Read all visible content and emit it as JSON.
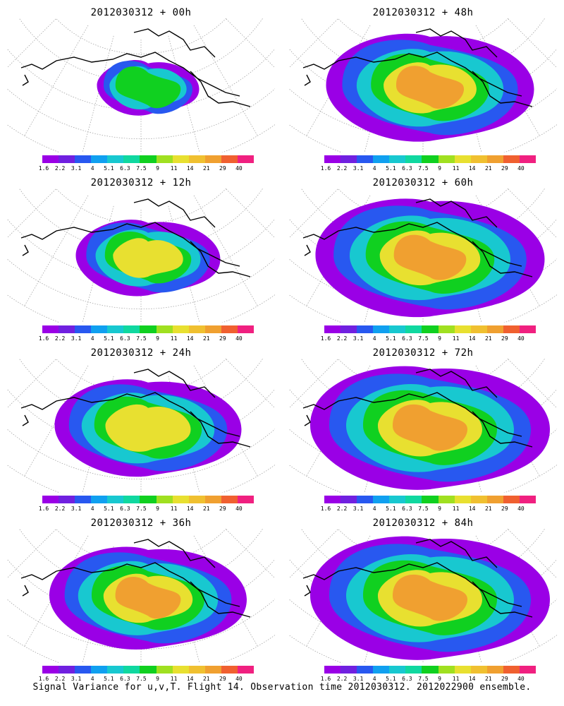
{
  "figure": {
    "caption": "Signal Variance for u,v,T. Flight 14. Observation time 2012030312. 2012022900 ensemble.",
    "panels": [
      {
        "title": "2012030312 + 00h",
        "coverage": 0.35,
        "peak": "green"
      },
      {
        "title": "2012030312 + 48h",
        "coverage": 0.85,
        "peak": "orange"
      },
      {
        "title": "2012030312 + 12h",
        "coverage": 0.55,
        "peak": "yellow"
      },
      {
        "title": "2012030312 + 60h",
        "coverage": 0.95,
        "peak": "orange"
      },
      {
        "title": "2012030312 + 24h",
        "coverage": 0.75,
        "peak": "yellow"
      },
      {
        "title": "2012030312 + 72h",
        "coverage": 1.0,
        "peak": "orange"
      },
      {
        "title": "2012030312 + 36h",
        "coverage": 0.8,
        "peak": "orange"
      },
      {
        "title": "2012030312 + 84h",
        "coverage": 1.0,
        "peak": "orange"
      }
    ],
    "colorbar": {
      "labels": [
        "1.6",
        "2.2",
        "3.1",
        "4",
        "5.1",
        "6.3",
        "7.5",
        "9",
        "11",
        "14",
        "21",
        "29",
        "40"
      ],
      "colors": [
        "#9a00e6",
        "#7020e0",
        "#2858f0",
        "#10a0f0",
        "#18c8d0",
        "#10d8a0",
        "#10d020",
        "#a0e020",
        "#e8e030",
        "#f0c030",
        "#f0a030",
        "#f06030",
        "#f02080"
      ]
    }
  }
}
